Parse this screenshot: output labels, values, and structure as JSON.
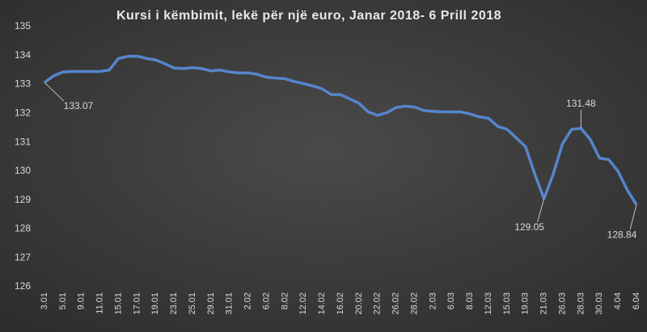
{
  "chart_data": {
    "type": "line",
    "title": "Kursi i këmbimit, lekë për një euro, Janar 2018-  6 Prill 2018",
    "categories": [
      "3.01",
      null,
      "5.01",
      null,
      "9.01",
      null,
      "11.01",
      null,
      "15.01",
      null,
      "17.01",
      null,
      "19.01",
      null,
      "23.01",
      null,
      "25.01",
      null,
      "29.01",
      null,
      "31.01",
      null,
      "2.02",
      null,
      "6.02",
      null,
      "8.02",
      null,
      "12.02",
      null,
      "14.02",
      null,
      "16.02",
      null,
      "20.02",
      null,
      "22.02",
      null,
      "26.02",
      null,
      "28.02",
      null,
      "2.03",
      null,
      "6.03",
      null,
      "8.03",
      null,
      "12.03",
      null,
      "15.03",
      null,
      "19.03",
      null,
      "21.03",
      null,
      "26.03",
      null,
      "28.03",
      null,
      "30.03",
      null,
      "4.04",
      null,
      "6.04"
    ],
    "series": [
      {
        "color": "#5585cc",
        "values": [
          133.07,
          133.3,
          133.43,
          133.45,
          133.45,
          133.45,
          133.45,
          133.5,
          133.9,
          133.97,
          133.98,
          133.9,
          133.85,
          133.72,
          133.57,
          133.55,
          133.58,
          133.55,
          133.47,
          133.5,
          133.43,
          133.4,
          133.4,
          133.35,
          133.25,
          133.22,
          133.2,
          133.1,
          133.03,
          132.95,
          132.85,
          132.65,
          132.65,
          132.5,
          132.35,
          132.05,
          131.93,
          132.02,
          132.2,
          132.25,
          132.22,
          132.1,
          132.07,
          132.05,
          132.05,
          132.05,
          131.98,
          131.88,
          131.83,
          131.55,
          131.45,
          131.15,
          130.85,
          129.9,
          129.05,
          129.9,
          130.95,
          131.45,
          131.48,
          131.1,
          130.45,
          130.4,
          130.0,
          129.35,
          128.84
        ],
        "value_labels": [
          "133.07",
          null,
          null,
          null,
          null,
          null,
          null,
          null,
          null,
          null,
          null,
          null,
          null,
          null,
          null,
          null,
          null,
          null,
          null,
          null,
          null,
          null,
          null,
          null,
          null,
          null,
          null,
          null,
          null,
          null,
          null,
          null,
          null,
          null,
          null,
          null,
          null,
          null,
          null,
          null,
          null,
          null,
          null,
          null,
          null,
          null,
          null,
          null,
          null,
          null,
          null,
          null,
          null,
          null,
          "129.05",
          null,
          null,
          null,
          "131.48",
          null,
          null,
          null,
          null,
          null,
          "128.84"
        ]
      }
    ],
    "ylim": [
      126,
      135
    ],
    "yticks": [
      126,
      127,
      128,
      129,
      130,
      131,
      132,
      133,
      134,
      135
    ],
    "grid": false
  }
}
